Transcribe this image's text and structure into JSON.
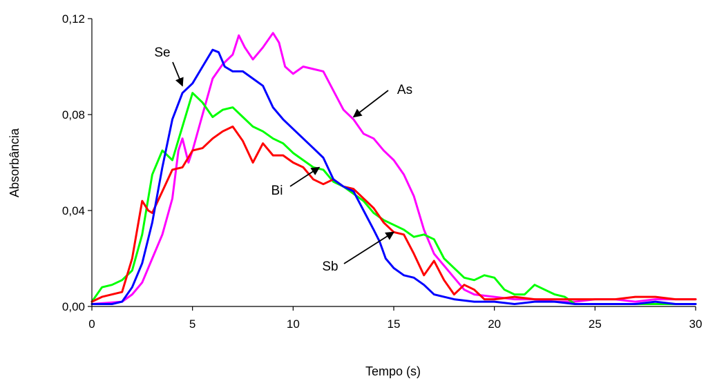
{
  "chart_data": {
    "type": "line",
    "title": "",
    "xlabel": "Tempo (s)",
    "ylabel": "Absorbância",
    "xlim": [
      0,
      30
    ],
    "ylim": [
      0,
      0.12
    ],
    "xticks": [
      0,
      5,
      10,
      15,
      20,
      25,
      30
    ],
    "xtick_labels": [
      "0",
      "5",
      "10",
      "15",
      "20",
      "25",
      "30"
    ],
    "yticks": [
      0,
      0.04,
      0.08,
      0.12
    ],
    "ytick_labels": [
      "0,00",
      "0,04",
      "0,08",
      "0,12"
    ],
    "grid": false,
    "legend": "none",
    "series": [
      {
        "name": "Se",
        "color": "#0000ff",
        "points": [
          [
            0,
            0.001
          ],
          [
            1,
            0.001
          ],
          [
            1.5,
            0.002
          ],
          [
            2,
            0.008
          ],
          [
            2.5,
            0.018
          ],
          [
            3,
            0.035
          ],
          [
            3.5,
            0.058
          ],
          [
            4,
            0.078
          ],
          [
            4.5,
            0.089
          ],
          [
            5,
            0.093
          ],
          [
            5.5,
            0.1
          ],
          [
            6,
            0.107
          ],
          [
            6.3,
            0.106
          ],
          [
            6.6,
            0.1
          ],
          [
            7,
            0.098
          ],
          [
            7.5,
            0.098
          ],
          [
            8,
            0.095
          ],
          [
            8.5,
            0.092
          ],
          [
            9,
            0.083
          ],
          [
            9.5,
            0.078
          ],
          [
            10,
            0.074
          ],
          [
            10.5,
            0.07
          ],
          [
            11,
            0.066
          ],
          [
            11.5,
            0.062
          ],
          [
            12,
            0.053
          ],
          [
            12.5,
            0.05
          ],
          [
            13,
            0.048
          ],
          [
            13.5,
            0.04
          ],
          [
            14,
            0.032
          ],
          [
            14.3,
            0.027
          ],
          [
            14.6,
            0.02
          ],
          [
            15,
            0.016
          ],
          [
            15.5,
            0.013
          ],
          [
            16,
            0.012
          ],
          [
            16.5,
            0.009
          ],
          [
            17,
            0.005
          ],
          [
            17.5,
            0.004
          ],
          [
            18,
            0.003
          ],
          [
            19,
            0.002
          ],
          [
            20,
            0.002
          ],
          [
            21,
            0.001
          ],
          [
            22,
            0.002
          ],
          [
            23,
            0.002
          ],
          [
            24,
            0.001
          ],
          [
            25,
            0.001
          ],
          [
            26,
            0.001
          ],
          [
            27,
            0.001
          ],
          [
            28,
            0.002
          ],
          [
            29,
            0.001
          ],
          [
            30,
            0.001
          ]
        ]
      },
      {
        "name": "As",
        "color": "#ff00ff",
        "points": [
          [
            0,
            0.001
          ],
          [
            1.5,
            0.002
          ],
          [
            2,
            0.005
          ],
          [
            2.5,
            0.01
          ],
          [
            3,
            0.02
          ],
          [
            3.5,
            0.03
          ],
          [
            4,
            0.045
          ],
          [
            4.3,
            0.065
          ],
          [
            4.5,
            0.07
          ],
          [
            4.8,
            0.06
          ],
          [
            5,
            0.065
          ],
          [
            5.5,
            0.08
          ],
          [
            6,
            0.095
          ],
          [
            6.5,
            0.101
          ],
          [
            7,
            0.105
          ],
          [
            7.3,
            0.113
          ],
          [
            7.6,
            0.108
          ],
          [
            8,
            0.103
          ],
          [
            8.5,
            0.108
          ],
          [
            9,
            0.114
          ],
          [
            9.3,
            0.11
          ],
          [
            9.6,
            0.1
          ],
          [
            10,
            0.097
          ],
          [
            10.5,
            0.1
          ],
          [
            11,
            0.099
          ],
          [
            11.5,
            0.098
          ],
          [
            12,
            0.09
          ],
          [
            12.5,
            0.082
          ],
          [
            13,
            0.078
          ],
          [
            13.5,
            0.072
          ],
          [
            14,
            0.07
          ],
          [
            14.5,
            0.065
          ],
          [
            15,
            0.061
          ],
          [
            15.5,
            0.055
          ],
          [
            16,
            0.046
          ],
          [
            16.5,
            0.032
          ],
          [
            17,
            0.022
          ],
          [
            17.5,
            0.017
          ],
          [
            18,
            0.012
          ],
          [
            18.5,
            0.007
          ],
          [
            19,
            0.005
          ],
          [
            20,
            0.004
          ],
          [
            21,
            0.003
          ],
          [
            22,
            0.003
          ],
          [
            23,
            0.002
          ],
          [
            24,
            0.002
          ],
          [
            25,
            0.003
          ],
          [
            26,
            0.003
          ],
          [
            27,
            0.002
          ],
          [
            28,
            0.003
          ],
          [
            29,
            0.003
          ],
          [
            30,
            0.003
          ]
        ]
      },
      {
        "name": "",
        "color": "#00ff00",
        "points": [
          [
            0,
            0.002
          ],
          [
            0.5,
            0.008
          ],
          [
            1,
            0.009
          ],
          [
            1.5,
            0.011
          ],
          [
            2,
            0.015
          ],
          [
            2.5,
            0.03
          ],
          [
            3,
            0.055
          ],
          [
            3.5,
            0.065
          ],
          [
            4,
            0.061
          ],
          [
            4.5,
            0.075
          ],
          [
            5,
            0.089
          ],
          [
            5.5,
            0.085
          ],
          [
            6,
            0.079
          ],
          [
            6.5,
            0.082
          ],
          [
            7,
            0.083
          ],
          [
            7.5,
            0.079
          ],
          [
            8,
            0.075
          ],
          [
            8.5,
            0.073
          ],
          [
            9,
            0.07
          ],
          [
            9.5,
            0.068
          ],
          [
            10,
            0.064
          ],
          [
            10.5,
            0.061
          ],
          [
            11,
            0.058
          ],
          [
            11.5,
            0.057
          ],
          [
            12,
            0.052
          ],
          [
            12.5,
            0.05
          ],
          [
            13,
            0.047
          ],
          [
            13.5,
            0.044
          ],
          [
            14,
            0.039
          ],
          [
            14.5,
            0.036
          ],
          [
            15,
            0.034
          ],
          [
            15.5,
            0.032
          ],
          [
            16,
            0.029
          ],
          [
            16.5,
            0.03
          ],
          [
            17,
            0.028
          ],
          [
            17.5,
            0.02
          ],
          [
            18,
            0.016
          ],
          [
            18.5,
            0.012
          ],
          [
            19,
            0.011
          ],
          [
            19.5,
            0.013
          ],
          [
            20,
            0.012
          ],
          [
            20.5,
            0.007
          ],
          [
            21,
            0.005
          ],
          [
            21.5,
            0.005
          ],
          [
            22,
            0.009
          ],
          [
            22.5,
            0.007
          ],
          [
            23,
            0.005
          ],
          [
            23.5,
            0.004
          ],
          [
            24,
            0.001
          ],
          [
            25,
            0.001
          ],
          [
            26,
            0.001
          ],
          [
            27,
            0.001
          ],
          [
            28,
            0.001
          ],
          [
            29,
            0.001
          ],
          [
            30,
            0.001
          ]
        ]
      },
      {
        "name": "",
        "color": "#ff0000",
        "points": [
          [
            0,
            0.002
          ],
          [
            0.5,
            0.004
          ],
          [
            1,
            0.005
          ],
          [
            1.5,
            0.006
          ],
          [
            2,
            0.02
          ],
          [
            2.5,
            0.044
          ],
          [
            2.8,
            0.04
          ],
          [
            3,
            0.039
          ],
          [
            3.5,
            0.048
          ],
          [
            4,
            0.057
          ],
          [
            4.5,
            0.058
          ],
          [
            5,
            0.065
          ],
          [
            5.5,
            0.066
          ],
          [
            6,
            0.07
          ],
          [
            6.5,
            0.073
          ],
          [
            7,
            0.075
          ],
          [
            7.5,
            0.069
          ],
          [
            8,
            0.06
          ],
          [
            8.5,
            0.068
          ],
          [
            9,
            0.063
          ],
          [
            9.5,
            0.063
          ],
          [
            10,
            0.06
          ],
          [
            10.5,
            0.058
          ],
          [
            11,
            0.053
          ],
          [
            11.5,
            0.051
          ],
          [
            12,
            0.053
          ],
          [
            12.5,
            0.05
          ],
          [
            13,
            0.049
          ],
          [
            13.5,
            0.045
          ],
          [
            14,
            0.041
          ],
          [
            14.5,
            0.035
          ],
          [
            15,
            0.031
          ],
          [
            15.5,
            0.03
          ],
          [
            16,
            0.022
          ],
          [
            16.5,
            0.013
          ],
          [
            17,
            0.019
          ],
          [
            17.5,
            0.011
          ],
          [
            18,
            0.005
          ],
          [
            18.5,
            0.009
          ],
          [
            19,
            0.007
          ],
          [
            19.5,
            0.003
          ],
          [
            20,
            0.003
          ],
          [
            21,
            0.004
          ],
          [
            22,
            0.003
          ],
          [
            23,
            0.003
          ],
          [
            24,
            0.003
          ],
          [
            25,
            0.003
          ],
          [
            26,
            0.003
          ],
          [
            27,
            0.004
          ],
          [
            28,
            0.004
          ],
          [
            29,
            0.003
          ],
          [
            30,
            0.003
          ]
        ]
      }
    ],
    "annotations": [
      {
        "text": "Se",
        "target": [
          4.5,
          0.092
        ]
      },
      {
        "text": "As",
        "target": [
          13,
          0.079
        ]
      },
      {
        "text": "Bi",
        "target": [
          11.3,
          0.058
        ]
      },
      {
        "text": "Sb",
        "target": [
          15,
          0.031
        ]
      }
    ]
  }
}
